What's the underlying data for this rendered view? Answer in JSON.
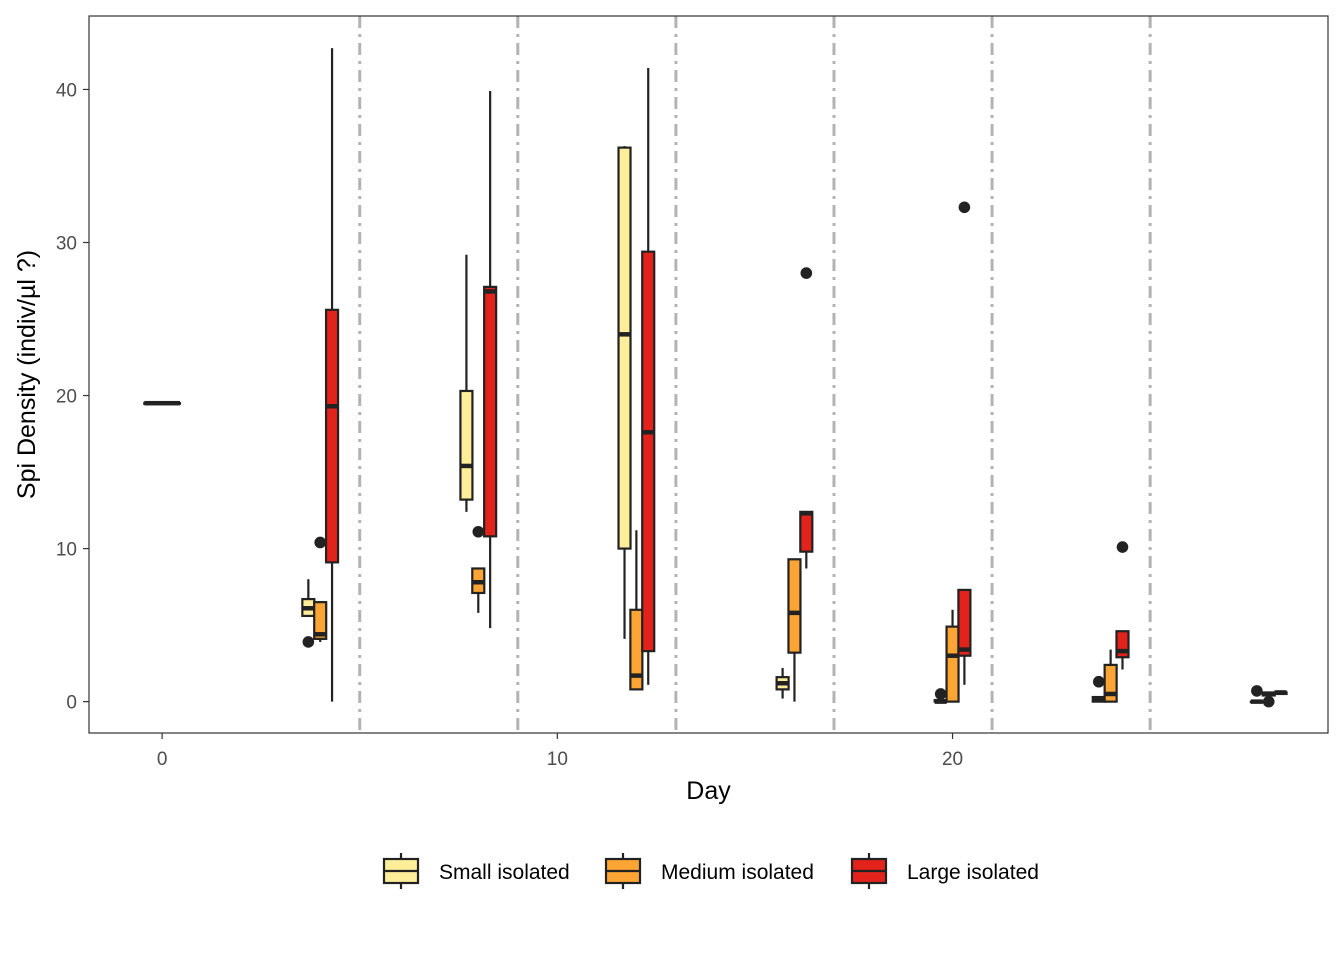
{
  "chart_data": {
    "type": "boxplot",
    "xlabel": "Day",
    "ylabel": "Spi Density (indiv/µl ?)",
    "xlim": [
      -1.85,
      29.5
    ],
    "ylim": [
      -2.05,
      44.8
    ],
    "x_ticks": [
      0,
      10,
      20
    ],
    "y_ticks": [
      0,
      10,
      20,
      30,
      40
    ],
    "grid": false,
    "legend_position": "bottom",
    "vertical_lines": [
      5,
      9,
      13,
      17,
      21,
      25
    ],
    "vertical_line_style": "dash-dot",
    "dodge_offset": 0.3,
    "colors": {
      "Small isolated": "#FFEE99",
      "Medium isolated": "#FDA534",
      "Large isolated": "#E3221C",
      "outline": "#222222",
      "vline": "#b3b3b3"
    },
    "series": [
      {
        "name": "Small isolated",
        "boxes": [
          {
            "day": 0,
            "min": 19.5,
            "q1": 19.5,
            "median": 19.5,
            "q3": 19.5,
            "max": 19.5,
            "outliers": []
          },
          {
            "day": 4,
            "min": 5.6,
            "q1": 5.6,
            "median": 6.1,
            "q3": 6.7,
            "max": 8.0,
            "outliers": [
              3.9
            ]
          },
          {
            "day": 8,
            "min": 12.4,
            "q1": 13.2,
            "median": 15.4,
            "q3": 20.3,
            "max": 29.2,
            "outliers": []
          },
          {
            "day": 12,
            "min": 4.1,
            "q1": 10.0,
            "median": 24.0,
            "q3": 36.2,
            "max": 36.3,
            "outliers": []
          },
          {
            "day": 16,
            "min": 0.2,
            "q1": 0.8,
            "median": 1.2,
            "q3": 1.6,
            "max": 2.2,
            "outliers": []
          },
          {
            "day": 20,
            "min": 0.0,
            "q1": 0.0,
            "median": 0.0,
            "q3": 0.1,
            "max": 0.1,
            "outliers": [
              0.5
            ]
          },
          {
            "day": 24,
            "min": 0.0,
            "q1": 0.0,
            "median": 0.1,
            "q3": 0.3,
            "max": 0.3,
            "outliers": [
              1.3
            ]
          },
          {
            "day": 28,
            "min": 0.0,
            "q1": 0.0,
            "median": 0.0,
            "q3": 0.0,
            "max": 0.0,
            "outliers": [
              0.7
            ]
          }
        ]
      },
      {
        "name": "Medium isolated",
        "boxes": [
          {
            "day": 0,
            "min": 19.5,
            "q1": 19.5,
            "median": 19.5,
            "q3": 19.5,
            "max": 19.5,
            "outliers": []
          },
          {
            "day": 4,
            "min": 3.9,
            "q1": 4.1,
            "median": 4.4,
            "q3": 6.5,
            "max": 6.5,
            "outliers": [
              10.4
            ]
          },
          {
            "day": 8,
            "min": 5.8,
            "q1": 7.1,
            "median": 7.8,
            "q3": 8.7,
            "max": 8.7,
            "outliers": [
              11.1
            ]
          },
          {
            "day": 12,
            "min": 0.8,
            "q1": 0.8,
            "median": 1.7,
            "q3": 6.0,
            "max": 11.2,
            "outliers": []
          },
          {
            "day": 16,
            "min": 0.0,
            "q1": 3.2,
            "median": 5.8,
            "q3": 9.3,
            "max": 9.3,
            "outliers": []
          },
          {
            "day": 20,
            "min": 0.0,
            "q1": 0.0,
            "median": 3.0,
            "q3": 4.9,
            "max": 6.0,
            "outliers": []
          },
          {
            "day": 24,
            "min": 0.0,
            "q1": 0.0,
            "median": 0.5,
            "q3": 2.4,
            "max": 3.4,
            "outliers": []
          },
          {
            "day": 28,
            "min": 0.3,
            "q1": 0.4,
            "median": 0.5,
            "q3": 0.6,
            "max": 0.6,
            "outliers": [
              0.0
            ]
          }
        ]
      },
      {
        "name": "Large isolated",
        "boxes": [
          {
            "day": 0,
            "min": 19.5,
            "q1": 19.5,
            "median": 19.5,
            "q3": 19.5,
            "max": 19.5,
            "outliers": []
          },
          {
            "day": 4,
            "min": 0.0,
            "q1": 9.1,
            "median": 19.3,
            "q3": 25.6,
            "max": 42.7,
            "outliers": []
          },
          {
            "day": 8,
            "min": 4.8,
            "q1": 10.8,
            "median": 26.8,
            "q3": 27.1,
            "max": 39.9,
            "outliers": []
          },
          {
            "day": 12,
            "min": 1.1,
            "q1": 3.3,
            "median": 17.6,
            "q3": 29.4,
            "max": 41.4,
            "outliers": []
          },
          {
            "day": 16,
            "min": 8.7,
            "q1": 9.8,
            "median": 12.3,
            "q3": 12.4,
            "max": 12.4,
            "outliers": [
              28.0
            ]
          },
          {
            "day": 20,
            "min": 1.1,
            "q1": 3.0,
            "median": 3.4,
            "q3": 7.3,
            "max": 7.3,
            "outliers": [
              32.3
            ]
          },
          {
            "day": 24,
            "min": 2.1,
            "q1": 2.9,
            "median": 3.3,
            "q3": 4.6,
            "max": 4.6,
            "outliers": [
              10.1
            ]
          },
          {
            "day": 28,
            "min": 0.5,
            "q1": 0.5,
            "median": 0.6,
            "q3": 0.6,
            "max": 0.6,
            "outliers": []
          }
        ]
      }
    ]
  }
}
